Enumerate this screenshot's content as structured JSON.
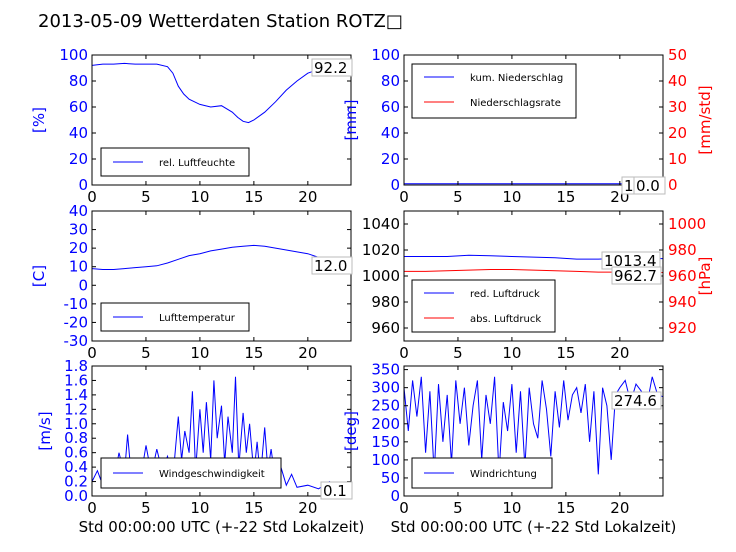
{
  "title": "2013-05-09 Wetterdaten Station ROTZ□",
  "colors": {
    "blue": "#0000ff",
    "red": "#ff0000",
    "black": "#000000"
  },
  "chart_data": [
    {
      "id": "humidity",
      "type": "line",
      "xlim": [
        0,
        24
      ],
      "ylim": [
        0,
        100
      ],
      "xticks": [
        0,
        5,
        10,
        15,
        20
      ],
      "yticks": [
        0,
        20,
        40,
        60,
        80,
        100
      ],
      "ylabel": "[%]",
      "annotation": "92.2",
      "legend": {
        "placement": "lower-left",
        "entries": [
          "rel. Luftfeuchte"
        ]
      },
      "series": [
        {
          "name": "rel. Luftfeuchte",
          "color": "#0000ff",
          "x": [
            0,
            1,
            2,
            3,
            4,
            5,
            6,
            7,
            7.5,
            8,
            8.5,
            9,
            10,
            11,
            12,
            13,
            13.5,
            14,
            14.5,
            15,
            16,
            17,
            18,
            19,
            20,
            21,
            22,
            23,
            24
          ],
          "y": [
            92,
            93,
            93,
            93.5,
            93,
            93,
            93,
            91,
            86,
            76,
            70,
            66,
            62,
            60,
            61,
            56,
            52,
            49,
            48,
            50,
            56,
            64,
            73,
            80,
            86,
            89,
            91,
            92,
            92.2
          ]
        }
      ]
    },
    {
      "id": "precip",
      "type": "line",
      "xlim": [
        0,
        24
      ],
      "ylim": [
        0,
        100
      ],
      "ylim_right": [
        0,
        50
      ],
      "xticks": [
        0,
        5,
        10,
        15,
        20
      ],
      "yticks": [
        0,
        20,
        40,
        60,
        80,
        100
      ],
      "yticks_right": [
        0,
        10,
        20,
        30,
        40,
        50
      ],
      "ylabel": "[mm]",
      "ylabel_right": "[mm/std]",
      "annotations": [
        "1.0",
        "0.0"
      ],
      "legend": {
        "placement": "upper-left",
        "entries": [
          "kum. Niederschlag",
          "Niederschlagsrate"
        ]
      },
      "series": [
        {
          "name": "kum. Niederschlag",
          "color": "#0000ff",
          "axis": "left",
          "x": [
            0,
            6,
            12,
            18,
            24
          ],
          "y": [
            1,
            1,
            1,
            1,
            1
          ]
        },
        {
          "name": "Niederschlagsrate",
          "color": "#ff0000",
          "axis": "right",
          "x": [
            0,
            6,
            12,
            18,
            24
          ],
          "y": [
            0,
            0,
            0,
            0,
            0
          ]
        }
      ]
    },
    {
      "id": "temperature",
      "type": "line",
      "xlim": [
        0,
        24
      ],
      "ylim": [
        -30,
        40
      ],
      "xticks": [
        0,
        5,
        10,
        15,
        20
      ],
      "yticks": [
        -30,
        -20,
        -10,
        0,
        10,
        20,
        30,
        40
      ],
      "ylabel": "[C]",
      "annotation": "12.0",
      "legend": {
        "placement": "lower-left",
        "entries": [
          "Lufttemperatur"
        ]
      },
      "series": [
        {
          "name": "Lufttemperatur",
          "color": "#0000ff",
          "x": [
            0,
            1,
            2,
            3,
            4,
            5,
            6,
            7,
            8,
            9,
            10,
            11,
            12,
            13,
            14,
            15,
            16,
            17,
            18,
            19,
            20,
            21,
            22,
            23,
            24
          ],
          "y": [
            9,
            8.5,
            8.5,
            9,
            9.5,
            10,
            10.5,
            12,
            14,
            16,
            17,
            18.5,
            19.5,
            20.5,
            21,
            21.5,
            21,
            20,
            19,
            18,
            17,
            15,
            13,
            12.2,
            12
          ]
        }
      ]
    },
    {
      "id": "pressure",
      "type": "line",
      "xlim": [
        0,
        24
      ],
      "ylim": [
        950,
        1050
      ],
      "ylim_right": [
        910,
        1010
      ],
      "xticks": [
        0,
        5,
        10,
        15,
        20
      ],
      "yticks": [
        960,
        980,
        1000,
        1020,
        1040
      ],
      "yticks_right": [
        920,
        940,
        960,
        980,
        1000
      ],
      "ylabel_right": "[hPa]",
      "annotations": [
        "1013.4",
        "962.7"
      ],
      "legend": {
        "placement": "lower-left",
        "entries": [
          "red. Luftdruck",
          "abs. Luftdruck"
        ]
      },
      "series": [
        {
          "name": "red. Luftdruck",
          "color": "#0000ff",
          "axis": "left",
          "x": [
            0,
            2,
            4,
            6,
            8,
            10,
            12,
            14,
            16,
            18,
            20,
            22,
            24
          ],
          "y": [
            1015,
            1015,
            1015,
            1016,
            1015.5,
            1015,
            1014.5,
            1014,
            1013,
            1013,
            1013.5,
            1013.5,
            1013.4
          ]
        },
        {
          "name": "abs. Luftdruck",
          "color": "#ff0000",
          "axis": "right",
          "x": [
            0,
            2,
            4,
            6,
            8,
            10,
            12,
            14,
            16,
            18,
            20,
            22,
            24
          ],
          "y": [
            963.5,
            963.5,
            964,
            964.5,
            965,
            965,
            964.5,
            964,
            963.5,
            963,
            963,
            962.8,
            962.7
          ]
        }
      ]
    },
    {
      "id": "windspeed",
      "type": "line",
      "xlim": [
        0,
        24
      ],
      "ylim": [
        0,
        1.8
      ],
      "xticks": [
        0,
        5,
        10,
        15,
        20
      ],
      "yticks": [
        0.0,
        0.2,
        0.4,
        0.6,
        0.8,
        1.0,
        1.2,
        1.4,
        1.6,
        1.8
      ],
      "ylabel": "[m/s]",
      "xlabel": "Std 00:00:00 UTC (+-22 Std Lokalzeit)",
      "annotation": "0.1",
      "legend": {
        "placement": "lower-left",
        "entries": [
          "Windgeschwindigkeit"
        ]
      },
      "series": [
        {
          "name": "Windgeschwindigkeit",
          "color": "#0000ff",
          "x": [
            0,
            0.5,
            1,
            1.5,
            2,
            2.5,
            3,
            3.3,
            3.6,
            4,
            4.5,
            5,
            5.5,
            6,
            6.5,
            7,
            7.5,
            8,
            8.3,
            8.6,
            9,
            9.3,
            9.6,
            10,
            10.3,
            10.6,
            11,
            11.3,
            11.6,
            12,
            12.3,
            12.6,
            13,
            13.3,
            13.6,
            14,
            14.3,
            14.6,
            15,
            15.3,
            15.6,
            16,
            16.3,
            16.6,
            17,
            17.5,
            18,
            18.5,
            19,
            20,
            21,
            22,
            23,
            24
          ],
          "y": [
            0.2,
            0.35,
            0.15,
            0.3,
            0.2,
            0.6,
            0.3,
            0.85,
            0.35,
            0.5,
            0.25,
            0.7,
            0.3,
            0.65,
            0.35,
            0.55,
            0.25,
            1.1,
            0.5,
            0.9,
            0.6,
            1.45,
            0.35,
            1.2,
            0.6,
            1.3,
            0.5,
            1.6,
            0.8,
            1.25,
            0.45,
            1.1,
            0.6,
            1.65,
            0.4,
            1.15,
            0.6,
            1.0,
            0.3,
            0.75,
            0.25,
            0.95,
            0.35,
            0.65,
            0.2,
            0.4,
            0.15,
            0.3,
            0.12,
            0.15,
            0.1,
            0.2,
            0.12,
            0.1
          ]
        }
      ]
    },
    {
      "id": "winddir",
      "type": "line",
      "xlim": [
        0,
        24
      ],
      "ylim": [
        0,
        360
      ],
      "xticks": [
        0,
        5,
        10,
        15,
        20
      ],
      "yticks": [
        0,
        50,
        100,
        150,
        200,
        250,
        300,
        350
      ],
      "ylabel": "[deg]",
      "xlabel": "Std 00:00:00 UTC (+-22 Std Lokalzeit)",
      "annotation": "274.6",
      "legend": {
        "placement": "lower-left",
        "entries": [
          "Windrichtung"
        ]
      },
      "series": [
        {
          "name": "Windrichtung",
          "color": "#0000ff",
          "x": [
            0,
            0.4,
            0.8,
            1.2,
            1.6,
            2,
            2.4,
            2.8,
            3.2,
            3.6,
            4,
            4.4,
            4.8,
            5.2,
            5.6,
            6,
            6.4,
            6.8,
            7.2,
            7.6,
            8,
            8.4,
            8.8,
            9.2,
            9.6,
            10,
            10.4,
            10.8,
            11.2,
            11.6,
            12,
            12.4,
            12.8,
            13.2,
            13.6,
            14,
            14.4,
            14.8,
            15.2,
            15.6,
            16,
            16.4,
            16.8,
            17.2,
            17.6,
            18,
            18.4,
            18.8,
            19.2,
            19.6,
            20,
            20.5,
            21,
            21.5,
            22,
            22.5,
            23,
            23.5,
            24
          ],
          "y": [
            300,
            180,
            320,
            220,
            330,
            120,
            290,
            60,
            310,
            150,
            280,
            90,
            320,
            200,
            300,
            140,
            250,
            320,
            100,
            280,
            200,
            330,
            60,
            260,
            180,
            310,
            120,
            290,
            80,
            300,
            200,
            160,
            320,
            240,
            110,
            290,
            190,
            320,
            210,
            280,
            300,
            230,
            310,
            150,
            290,
            60,
            300,
            250,
            100,
            280,
            300,
            320,
            260,
            310,
            290,
            250,
            330,
            280,
            275
          ]
        }
      ]
    }
  ]
}
